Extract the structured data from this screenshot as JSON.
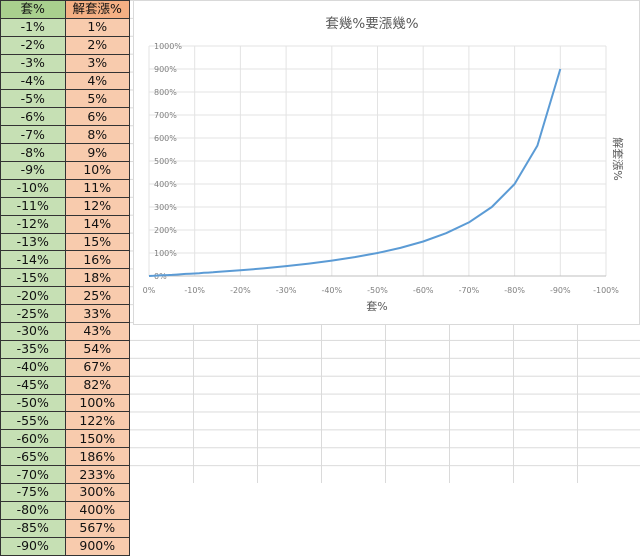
{
  "table": {
    "headers": [
      "套%",
      "解套漲%"
    ],
    "rows": [
      [
        "-1%",
        "1%"
      ],
      [
        "-2%",
        "2%"
      ],
      [
        "-3%",
        "3%"
      ],
      [
        "-4%",
        "4%"
      ],
      [
        "-5%",
        "5%"
      ],
      [
        "-6%",
        "6%"
      ],
      [
        "-7%",
        "8%"
      ],
      [
        "-8%",
        "9%"
      ],
      [
        "-9%",
        "10%"
      ],
      [
        "-10%",
        "11%"
      ],
      [
        "-11%",
        "12%"
      ],
      [
        "-12%",
        "14%"
      ],
      [
        "-13%",
        "15%"
      ],
      [
        "-14%",
        "16%"
      ],
      [
        "-15%",
        "18%"
      ],
      [
        "-20%",
        "25%"
      ],
      [
        "-25%",
        "33%"
      ],
      [
        "-30%",
        "43%"
      ],
      [
        "-35%",
        "54%"
      ],
      [
        "-40%",
        "67%"
      ],
      [
        "-45%",
        "82%"
      ],
      [
        "-50%",
        "100%"
      ],
      [
        "-55%",
        "122%"
      ],
      [
        "-60%",
        "150%"
      ],
      [
        "-65%",
        "186%"
      ],
      [
        "-70%",
        "233%"
      ],
      [
        "-75%",
        "300%"
      ],
      [
        "-80%",
        "400%"
      ],
      [
        "-85%",
        "567%"
      ],
      [
        "-90%",
        "900%"
      ]
    ]
  },
  "chart_data": {
    "type": "line",
    "title": "套幾%要漲幾%",
    "xlabel": "套%",
    "ylabel": "解套漲%",
    "xlim": [
      0,
      -100
    ],
    "ylim": [
      0,
      1000
    ],
    "xticks": [
      "0%",
      "-10%",
      "-20%",
      "-30%",
      "-40%",
      "-50%",
      "-60%",
      "-70%",
      "-80%",
      "-90%",
      "-100%"
    ],
    "yticks": [
      "0%",
      "100%",
      "200%",
      "300%",
      "400%",
      "500%",
      "600%",
      "700%",
      "800%",
      "900%",
      "1000%"
    ],
    "grid": true,
    "color": "#5b9bd5",
    "x": [
      0,
      -1,
      -2,
      -3,
      -4,
      -5,
      -6,
      -7,
      -8,
      -9,
      -10,
      -11,
      -12,
      -13,
      -14,
      -15,
      -20,
      -25,
      -30,
      -35,
      -40,
      -45,
      -50,
      -55,
      -60,
      -65,
      -70,
      -75,
      -80,
      -85,
      -90
    ],
    "y": [
      0,
      1,
      2,
      3,
      4,
      5,
      6,
      8,
      9,
      10,
      11,
      12,
      14,
      15,
      16,
      18,
      25,
      33,
      43,
      54,
      67,
      82,
      100,
      122,
      150,
      186,
      233,
      300,
      400,
      567,
      900
    ]
  }
}
